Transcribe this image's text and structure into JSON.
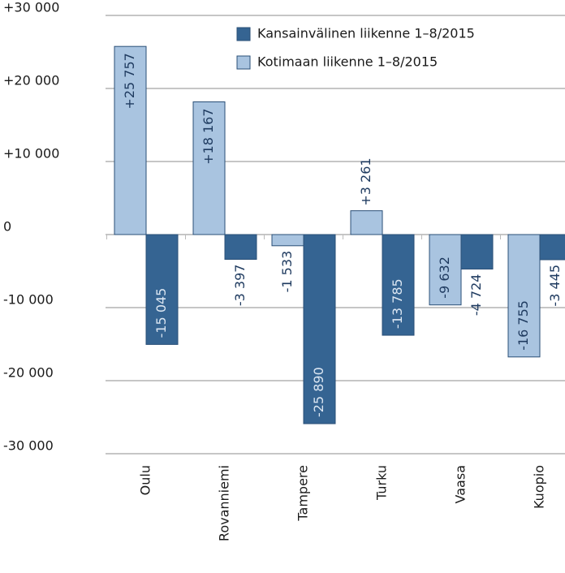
{
  "chart_data": {
    "type": "bar",
    "categories": [
      "Oulu",
      "Rovanniemi",
      "Tampere",
      "Turku",
      "Vaasa",
      "Kuopio"
    ],
    "series": [
      {
        "name": "Kansainvälinen liikenne 1–8/2015",
        "color": "#356492",
        "values": [
          -15045,
          -3397,
          -25890,
          -13785,
          -4724,
          -3445
        ],
        "value_labels": [
          "-15 045",
          "-3 397",
          "-25 890",
          "-13 785",
          "-4 724",
          "-3 445"
        ]
      },
      {
        "name": "Kotimaan liikenne 1–8/2015",
        "color": "#a9c4e0",
        "values": [
          25757,
          18167,
          -1533,
          3261,
          -9632,
          -16755
        ],
        "value_labels": [
          "+25 757",
          "+18 167",
          "-1 533",
          "+3 261",
          "-9 632",
          "-16 755"
        ]
      }
    ],
    "ylim": [
      -30000,
      30000
    ],
    "yticks": [
      {
        "value": 30000,
        "label": "+30 000"
      },
      {
        "value": 20000,
        "label": "+20 000"
      },
      {
        "value": 10000,
        "label": "+10 000"
      },
      0,
      {
        "value": -10000,
        "label": "-10 000"
      },
      {
        "value": -20000,
        "label": "-20 000"
      },
      {
        "value": -30000,
        "label": "-30 000"
      }
    ],
    "grid": true,
    "legend": "top-right"
  }
}
